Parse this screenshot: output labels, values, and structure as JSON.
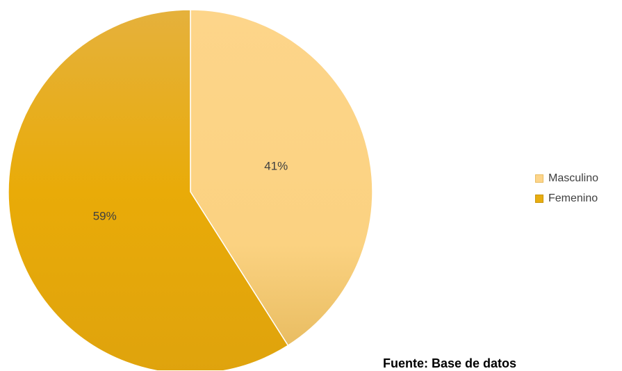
{
  "chart_data": {
    "type": "pie",
    "categories": [
      "Masculino",
      "Femenino"
    ],
    "values": [
      41,
      59
    ],
    "data_labels": [
      "41%",
      "59%"
    ],
    "colors": [
      "#fdd58a",
      "#e8ad10"
    ],
    "legend": {
      "position": "right",
      "entries": [
        "Masculino",
        "Femenino"
      ]
    },
    "title": ""
  },
  "source_note": "Fuente: Base de datos"
}
